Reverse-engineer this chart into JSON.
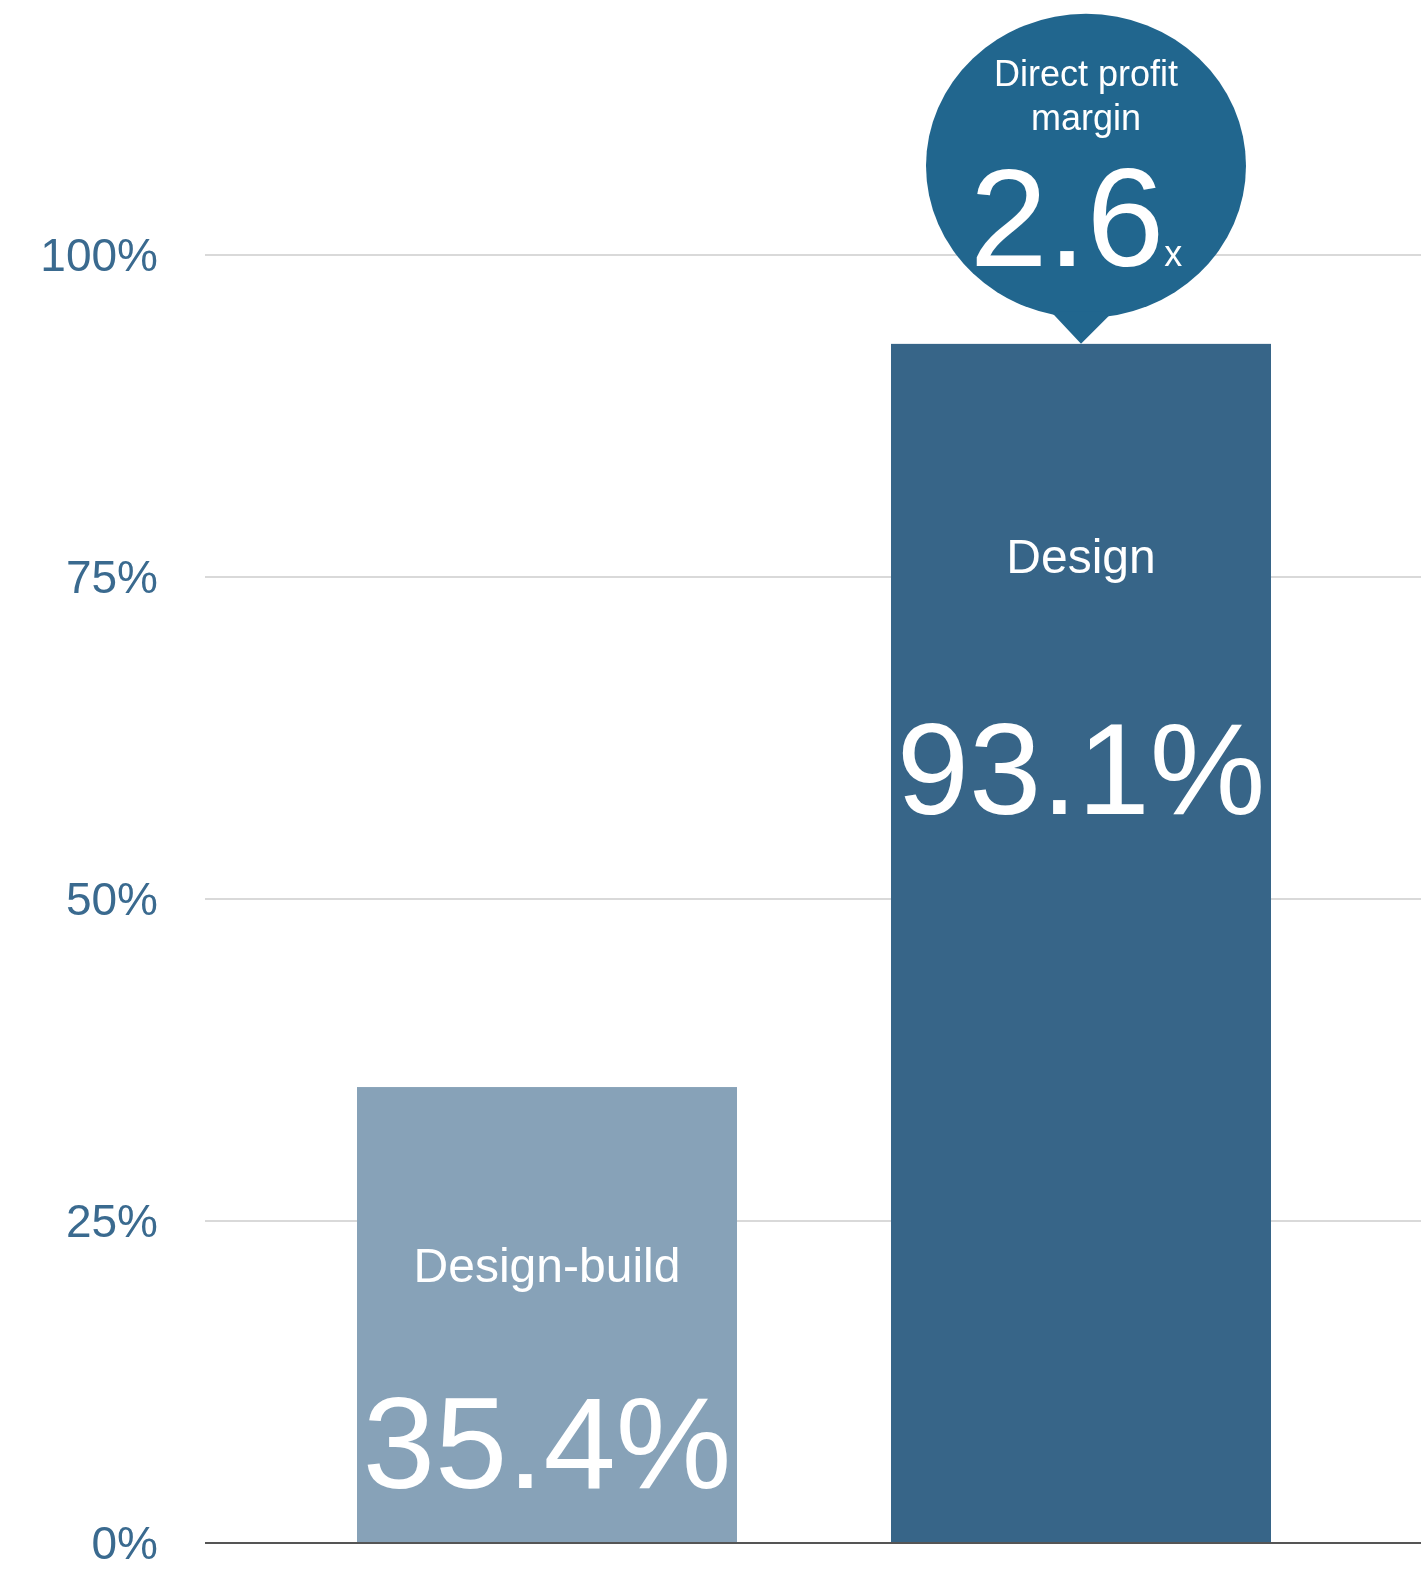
{
  "chart_data": {
    "type": "bar",
    "categories": [
      "Design-build",
      "Design"
    ],
    "values": [
      35.4,
      93.1
    ],
    "colors": [
      "#87a2b8",
      "#376588"
    ],
    "value_labels": [
      "35.4%",
      "93.1%"
    ],
    "ylim": [
      0,
      100
    ],
    "yticks": [
      {
        "value": 0,
        "label": "0%"
      },
      {
        "value": 25,
        "label": "25%"
      },
      {
        "value": 50,
        "label": "50%"
      },
      {
        "value": 75,
        "label": "75%"
      },
      {
        "value": 100,
        "label": "100%"
      }
    ],
    "grid": "y",
    "annotations": [
      "Direct profit margin",
      "2.6x"
    ]
  }
}
